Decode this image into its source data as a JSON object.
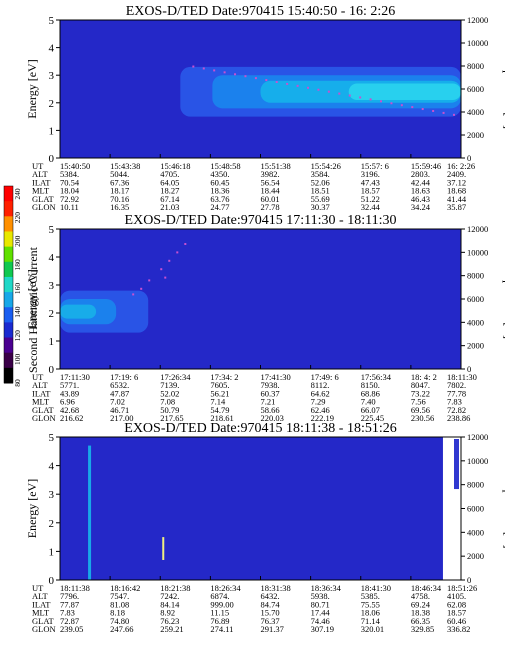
{
  "chart_data": [
    {
      "type": "heatmap",
      "title": "EXOS-D/TED   Date:970415  15:40:50 - 16: 2:26",
      "ylabel": "Energy [eV]",
      "y2label": "Temperature [K]",
      "ylim": [
        0,
        5
      ],
      "y_ticks": [
        "0",
        "1",
        "2",
        "3",
        "4",
        "5"
      ],
      "y2lim": [
        0,
        12000
      ],
      "y2_ticks": [
        "0",
        "2000",
        "4000",
        "6000",
        "8000",
        "10000",
        "12000"
      ],
      "ephemeris_labels": [
        "UT",
        "ALT",
        "ILAT",
        "MLT",
        "GLAT",
        "GLON"
      ],
      "ephemeris": [
        [
          "15:40:50",
          "15:43:38",
          "15:46:18",
          "15:48:58",
          "15:51:38",
          "15:54:26",
          "15:57: 6",
          "15:59:46",
          "16: 2:26"
        ],
        [
          "5384.",
          "5044.",
          "4705.",
          "4350.",
          "3982.",
          "3584.",
          "3196.",
          "2803.",
          "2409."
        ],
        [
          "70.54",
          "67.36",
          "64.05",
          "60.45",
          "56.54",
          "52.06",
          "47.43",
          "42.44",
          "37.12"
        ],
        [
          "18.04",
          "18.17",
          "18.27",
          "18.36",
          "18.44",
          "18.51",
          "18.57",
          "18.63",
          "18.68"
        ],
        [
          "72.92",
          "70.16",
          "67.14",
          "63.76",
          "60.01",
          "55.69",
          "51.22",
          "46.43",
          "41.44"
        ],
        [
          "10.11",
          "16.35",
          "21.03",
          "24.77",
          "27.78",
          "30.37",
          "32.44",
          "34.24",
          "35.87"
        ]
      ],
      "bands": [
        {
          "t0": 0.3,
          "t1": 1.0,
          "e0": 1.5,
          "e1": 3.3,
          "color": "#2a58e8"
        },
        {
          "t0": 0.38,
          "t1": 1.0,
          "e0": 1.8,
          "e1": 3.0,
          "color": "#1a86ee"
        },
        {
          "t0": 0.5,
          "t1": 1.0,
          "e0": 2.0,
          "e1": 2.8,
          "color": "#16b2ea"
        },
        {
          "t0": 0.72,
          "t1": 1.0,
          "e0": 2.1,
          "e1": 2.7,
          "color": "#2ad2ee"
        }
      ]
    },
    {
      "type": "heatmap",
      "title": "EXOS-D/TED   Date:970415  17:11:30 - 18:11:30",
      "ylabel": "Energy [eV]",
      "y2label": "Temperature [K]",
      "ylim": [
        0,
        5
      ],
      "y_ticks": [
        "0",
        "1",
        "2",
        "3",
        "4",
        "5"
      ],
      "y2lim": [
        0,
        12000
      ],
      "y2_ticks": [
        "0",
        "2000",
        "4000",
        "6000",
        "8000",
        "10000",
        "12000"
      ],
      "ephemeris_labels": [
        "UT",
        "ALT",
        "ILAT",
        "MLT",
        "GLAT",
        "GLON"
      ],
      "ephemeris": [
        [
          "17:11:30",
          "17:19: 6",
          "17:26:34",
          "17:34: 2",
          "17:41:30",
          "17:49: 6",
          "17:56:34",
          "18: 4: 2",
          "18:11:30"
        ],
        [
          "5771.",
          "6532.",
          "7139.",
          "7605.",
          "7938.",
          "8112.",
          "8150.",
          "8047.",
          "7802."
        ],
        [
          "43.89",
          "47.87",
          "52.02",
          "56.21",
          "60.37",
          "64.62",
          "68.86",
          "73.22",
          "77.78"
        ],
        [
          "6.96",
          "7.02",
          "7.08",
          "7.14",
          "7.21",
          "7.29",
          "7.40",
          "7.56",
          "7.83"
        ],
        [
          "42.68",
          "46.71",
          "50.79",
          "54.79",
          "58.66",
          "62.46",
          "66.07",
          "69.56",
          "72.82"
        ],
        [
          "216.62",
          "217.00",
          "217.65",
          "218.61",
          "220.03",
          "222.19",
          "225.45",
          "230.56",
          "238.86"
        ]
      ],
      "bands": [
        {
          "t0": 0.0,
          "t1": 0.22,
          "e0": 1.3,
          "e1": 2.8,
          "color": "#2a58e8"
        },
        {
          "t0": 0.0,
          "t1": 0.14,
          "e0": 1.6,
          "e1": 2.5,
          "color": "#1a86ee"
        },
        {
          "t0": 0.0,
          "t1": 0.09,
          "e0": 1.8,
          "e1": 2.3,
          "color": "#18b0e8"
        }
      ]
    },
    {
      "type": "heatmap",
      "title": "EXOS-D/TED   Date:970415  18:11:38 - 18:51:26",
      "ylabel": "Energy [eV]",
      "y2label": "Temperature [K]",
      "ylim": [
        0,
        5
      ],
      "y_ticks": [
        "0",
        "1",
        "2",
        "3",
        "4",
        "5"
      ],
      "y2lim": [
        0,
        12000
      ],
      "y2_ticks": [
        "0",
        "2000",
        "4000",
        "6000",
        "8000",
        "10000",
        "12000"
      ],
      "ephemeris_labels": [
        "UT",
        "ALT",
        "ILAT",
        "MLT",
        "GLAT",
        "GLON"
      ],
      "ephemeris": [
        [
          "18:11:38",
          "18:16:42",
          "18:21:38",
          "18:26:34",
          "18:31:38",
          "18:36:34",
          "18:41:30",
          "18:46:34",
          "18:51:26"
        ],
        [
          "7796.",
          "7547.",
          "7242.",
          "6874.",
          "6432.",
          "5938.",
          "5385.",
          "4758.",
          "4105."
        ],
        [
          "77.87",
          "81.08",
          "84.14",
          "999.00",
          "84.74",
          "80.71",
          "75.55",
          "69.24",
          "62.08"
        ],
        [
          "7.83",
          "8.18",
          "8.92",
          "11.15",
          "15.70",
          "17.44",
          "18.06",
          "18.38",
          "18.57"
        ],
        [
          "72.87",
          "74.80",
          "76.23",
          "76.89",
          "76.37",
          "74.46",
          "71.14",
          "66.35",
          "60.46"
        ],
        [
          "239.05",
          "247.66",
          "259.21",
          "274.11",
          "291.37",
          "307.19",
          "320.01",
          "329.85",
          "336.82"
        ]
      ],
      "bands": []
    }
  ],
  "colorbar": {
    "label": "Second Harmonic Current",
    "ticks": [
      "80",
      "100",
      "120",
      "140",
      "160",
      "180",
      "200",
      "220",
      "240"
    ],
    "colors": [
      "#000000",
      "#3a0048",
      "#4a0090",
      "#1a2ad0",
      "#1a5ef0",
      "#18a8e8",
      "#20d8c8",
      "#10c850",
      "#60e000",
      "#e8e800",
      "#ff9000",
      "#ff2000",
      "#ff0000"
    ]
  }
}
